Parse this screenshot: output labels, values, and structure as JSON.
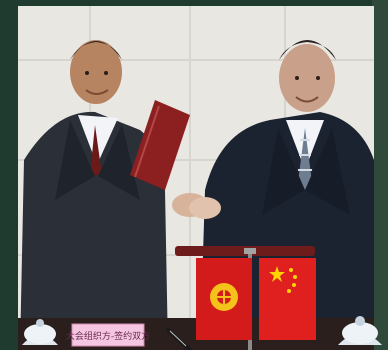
{
  "photo": {
    "placard_text": "大会组织方-签约双方",
    "colors": {
      "frame_left": "#1f3b2f",
      "frame_right": "#2f4a3a",
      "wall": "#e9e7e2",
      "wall_tiles": "#d7d5cf",
      "suit_dark": "#1c2330",
      "suit_left": "#2a2f38",
      "shirt_white": "#f2f4f7",
      "kyrgyz_red": "#d31b1b",
      "kyrgyz_sun": "#f4c21a",
      "china_red": "#e01f1f",
      "china_star": "#ffd400",
      "folder_maroon": "#8c1f1f",
      "table_dark": "#2a1f1d"
    },
    "icons": {
      "kyrgyz_flag": "kyrgyz-flag-icon",
      "china_flag": "china-flag-icon",
      "folder": "folder-icon",
      "pen": "pen-icon",
      "teacup": "teacup-icon"
    }
  }
}
